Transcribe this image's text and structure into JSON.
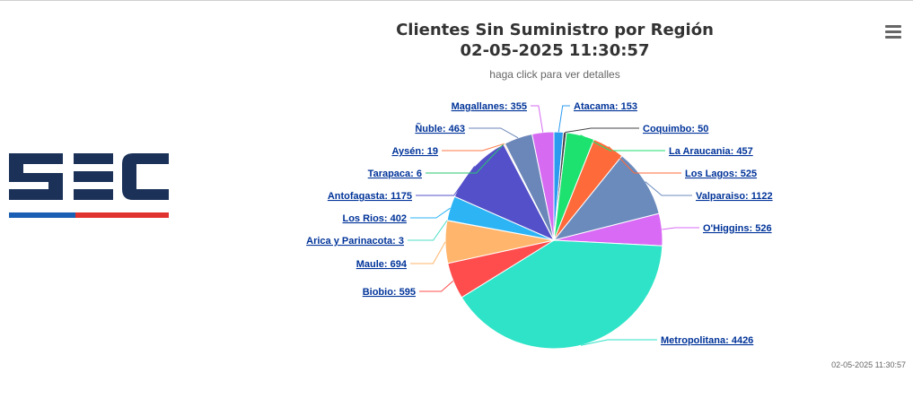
{
  "page": {
    "title_line1": "Clientes Sin Suministro por Región",
    "title_line2": "02-05-2025 11:30:57",
    "subtitle": "haga click para ver detalles",
    "timestamp": "02-05-2025 11:30:57"
  },
  "logo": {
    "text": "SEC",
    "colors": {
      "main": "#1b3158",
      "red": "#e0322f",
      "blue": "#1a5fb4"
    }
  },
  "menu": {
    "icon": "hamburger-menu-icon"
  },
  "chart_data": {
    "type": "pie",
    "title": "Clientes Sin Suministro por Región",
    "subtitle": "haga click para ver detalles",
    "slices": [
      {
        "name": "Atacama",
        "value": 153,
        "color": "#2b9bf0"
      },
      {
        "name": "Coquimbo",
        "value": 50,
        "color": "#434348"
      },
      {
        "name": "La Araucania",
        "value": 457,
        "color": "#1de26f"
      },
      {
        "name": "Los Lagos",
        "value": 525,
        "color": "#ff6a3a"
      },
      {
        "name": "Valparaiso",
        "value": 1122,
        "color": "#6b8bbd"
      },
      {
        "name": "O'Higgins",
        "value": 526,
        "color": "#d86af5"
      },
      {
        "name": "Metropolitana",
        "value": 4426,
        "color": "#2ee3c7"
      },
      {
        "name": "Biobio",
        "value": 595,
        "color": "#ff4d4d"
      },
      {
        "name": "Maule",
        "value": 694,
        "color": "#ffb56b"
      },
      {
        "name": "Arica y Parinacota",
        "value": 3,
        "color": "#4ddfc6"
      },
      {
        "name": "Los Rios",
        "value": 402,
        "color": "#2db4f5"
      },
      {
        "name": "Antofagasta",
        "value": 1175,
        "color": "#5450c9"
      },
      {
        "name": "Tarapaca",
        "value": 6,
        "color": "#28c76f"
      },
      {
        "name": "Aysén",
        "value": 19,
        "color": "#ff7a45"
      },
      {
        "name": "Ñuble",
        "value": 463,
        "color": "#6b86b8"
      },
      {
        "name": "Magallanes",
        "value": 355,
        "color": "#d66bf2"
      }
    ]
  }
}
